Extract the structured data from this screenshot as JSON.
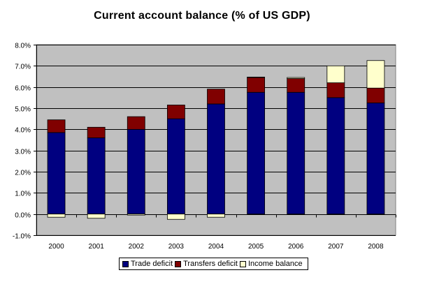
{
  "chart_data": {
    "type": "bar",
    "stacked": true,
    "title": "Current account balance (% of US GDP)",
    "categories": [
      "2000",
      "2001",
      "2002",
      "2003",
      "2004",
      "2005",
      "2006",
      "2007",
      "2008"
    ],
    "series": [
      {
        "name": "Trade deficit",
        "color": "#000080",
        "values": [
          3.85,
          3.6,
          4.0,
          4.5,
          5.2,
          5.75,
          5.75,
          5.5,
          5.25
        ]
      },
      {
        "name": "Transfers deficit",
        "color": "#800000",
        "values": [
          0.6,
          0.5,
          0.6,
          0.65,
          0.7,
          0.7,
          0.65,
          0.7,
          0.7
        ]
      },
      {
        "name": "Income balance",
        "color": "#FFFFCC",
        "values": [
          -0.15,
          -0.2,
          -0.05,
          -0.25,
          -0.15,
          0.02,
          0.05,
          0.8,
          1.3
        ]
      }
    ],
    "yticks": [
      "-1.0%",
      "0.0%",
      "1.0%",
      "2.0%",
      "3.0%",
      "4.0%",
      "5.0%",
      "6.0%",
      "7.0%",
      "8.0%"
    ],
    "ylim": [
      -1.0,
      8.0
    ],
    "plot_background": "#C0C0C0",
    "grid": true,
    "legend_position": "bottom"
  }
}
